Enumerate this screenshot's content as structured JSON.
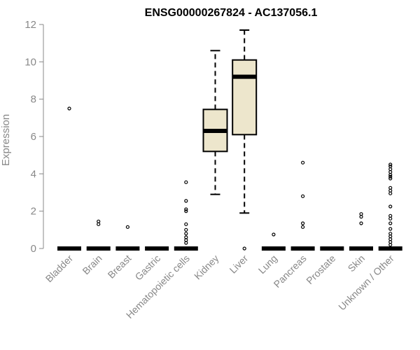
{
  "chart_data": {
    "type": "box",
    "title": "ENSG00000267824 - AC137056.1",
    "xlabel": "",
    "ylabel": "Expression",
    "ylim": [
      0,
      12
    ],
    "yticks": [
      0,
      2,
      4,
      6,
      8,
      10,
      12
    ],
    "grid": false,
    "box_color": "#ede6cc",
    "categories": [
      "Bladder",
      "Brain",
      "Breast",
      "Gastric",
      "Hematopoietic cells",
      "Kidney",
      "Liver",
      "Lung",
      "Pancreas",
      "Prostate",
      "Skin",
      "Unknown / Other"
    ],
    "boxes": [
      {
        "category": "Bladder",
        "min": 0,
        "q1": 0,
        "median": 0,
        "q3": 0,
        "max": 0,
        "outliers": [
          7.5
        ]
      },
      {
        "category": "Brain",
        "min": 0,
        "q1": 0,
        "median": 0,
        "q3": 0,
        "max": 0,
        "outliers": [
          1.3,
          1.45
        ]
      },
      {
        "category": "Breast",
        "min": 0,
        "q1": 0,
        "median": 0,
        "q3": 0,
        "max": 0,
        "outliers": [
          1.15
        ]
      },
      {
        "category": "Gastric",
        "min": 0,
        "q1": 0,
        "median": 0,
        "q3": 0,
        "max": 0,
        "outliers": []
      },
      {
        "category": "Hematopoietic cells",
        "min": 0,
        "q1": 0,
        "median": 0,
        "q3": 0,
        "max": 0,
        "outliers": [
          0.3,
          0.45,
          0.6,
          0.8,
          1.0,
          1.3,
          2.0,
          2.1,
          2.55,
          3.55
        ]
      },
      {
        "category": "Kidney",
        "min": 2.9,
        "q1": 5.2,
        "median": 6.3,
        "q3": 7.45,
        "max": 10.6,
        "outliers": []
      },
      {
        "category": "Liver",
        "min": 1.9,
        "q1": 6.1,
        "median": 9.2,
        "q3": 10.1,
        "max": 11.7,
        "outliers": [
          0
        ]
      },
      {
        "category": "Lung",
        "min": 0,
        "q1": 0,
        "median": 0,
        "q3": 0,
        "max": 0,
        "outliers": [
          0.75
        ]
      },
      {
        "category": "Pancreas",
        "min": 0,
        "q1": 0,
        "median": 0,
        "q3": 0,
        "max": 0,
        "outliers": [
          1.15,
          1.35,
          2.8,
          4.6
        ]
      },
      {
        "category": "Prostate",
        "min": 0,
        "q1": 0,
        "median": 0,
        "q3": 0,
        "max": 0,
        "outliers": []
      },
      {
        "category": "Skin",
        "min": 0,
        "q1": 0,
        "median": 0,
        "q3": 0,
        "max": 0,
        "outliers": [
          1.35,
          1.7,
          1.85
        ]
      },
      {
        "category": "Unknown / Other",
        "min": 0,
        "q1": 0,
        "median": 0,
        "q3": 0,
        "max": 0,
        "outliers": [
          0.2,
          0.35,
          0.5,
          0.65,
          0.8,
          1.05,
          1.35,
          1.6,
          1.75,
          2.25,
          2.95,
          3.1,
          3.25,
          3.75,
          3.85,
          3.95,
          4.1,
          4.25,
          4.4,
          4.5
        ]
      }
    ]
  }
}
